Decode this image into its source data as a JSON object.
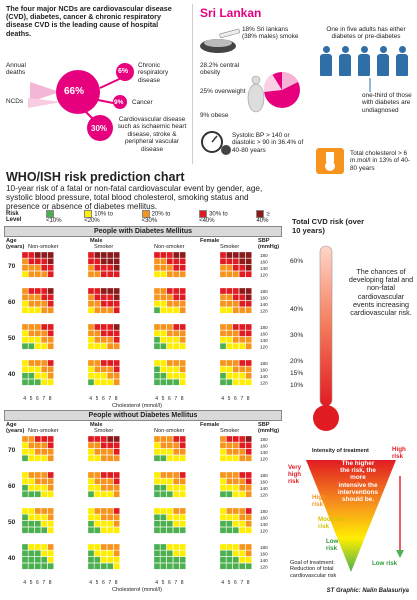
{
  "intro": {
    "text": "The four major NCDs are cardiovascular disease (CVD), diabetes, cancer & chronic respiratory disease CVD is the leading cause of hospital deaths.",
    "annual_deaths_label": "Annual deaths",
    "ncds_label": "NCDs",
    "pct_66": "66%",
    "pct_6": "6%",
    "pct_9": "9%",
    "pct_30": "30%",
    "chronic_label": "Chronic respiratory disease",
    "cancer_label": "Cancer",
    "cvd_label": "Cardiovascular disease such as ischaemic heart disease, stroke & peripheral vascular disease"
  },
  "sri_lanka": {
    "title": "Sri Lankan",
    "smoke_text": "18% Sri lankans (38% males) smoke",
    "central_obesity": "28.2% central obesity",
    "overweight": "25% overweight",
    "obese": "9% obese",
    "diabetes_text": "One in five adults has either diabetes or pre-diabetes",
    "undiagnosed": "one-third of those with diabetes are undiagnosed",
    "bp_text": "Systolic BP > 140 or diastolic > 90 in 36.4% of 40-80 years",
    "chol_text": "Total cholesterol > 6 m.mol/l in 13% of 40-80 years"
  },
  "who": {
    "title": "WHO/ISH risk prediction chart",
    "description": "10-year risk of a fatal or non-fatal cardiovascular event by gender, age, systolic blood pressure, total blood cholesterol, smoking status and presence or absence of diabetes mellitus.",
    "risk_level_label": "Risk Level",
    "legend": [
      {
        "label": "<10%",
        "color": "#4caf50"
      },
      {
        "label": "10% to <20%",
        "color": "#ffee00"
      },
      {
        "label": "20% to <30%",
        "color": "#f7941d"
      },
      {
        "label": "30% to <40%",
        "color": "#e11b22"
      },
      {
        "label": "≥ 40%",
        "color": "#8b1a1a"
      }
    ],
    "with_diabetes": "People with Diabetes Mellitus",
    "without_diabetes": "People without Diabetes Mellitus",
    "male": "Male",
    "female": "Female",
    "non_smoker": "Non-smoker",
    "smoker": "Smoker",
    "age_label": "Age (years)",
    "sbp_label": "SBP (mmHg)",
    "ages": [
      "70",
      "60",
      "50",
      "40"
    ],
    "sbp_values": [
      "180",
      "160",
      "140",
      "120"
    ],
    "chol_values": [
      "4",
      "5",
      "6",
      "7",
      "8"
    ],
    "cholesterol_label": "Cholesterol (mmol/l)"
  },
  "thermometer": {
    "title": "Total CVD risk (over 10 years)",
    "ticks": [
      "60%",
      "40%",
      "30%",
      "20%",
      "15%",
      "10%"
    ],
    "chance_text": "The chances of developing fatal and non-fatal cardiovascular events increasing cardiovascular risk."
  },
  "intensity": {
    "title": "Intensity of treatment",
    "inner_text": "The higher the risk, the more intensive the interventions should be.",
    "very_high": "Very high risk",
    "high": "High risk",
    "moderate": "Moderate risk",
    "low": "Low risk",
    "right_high": "High risk",
    "right_low": "Low risk",
    "goal": "Goal of treatment: Reduction of total cardiovascular risk"
  },
  "credit": "ST Graphic: Nalin Balasuriya"
}
